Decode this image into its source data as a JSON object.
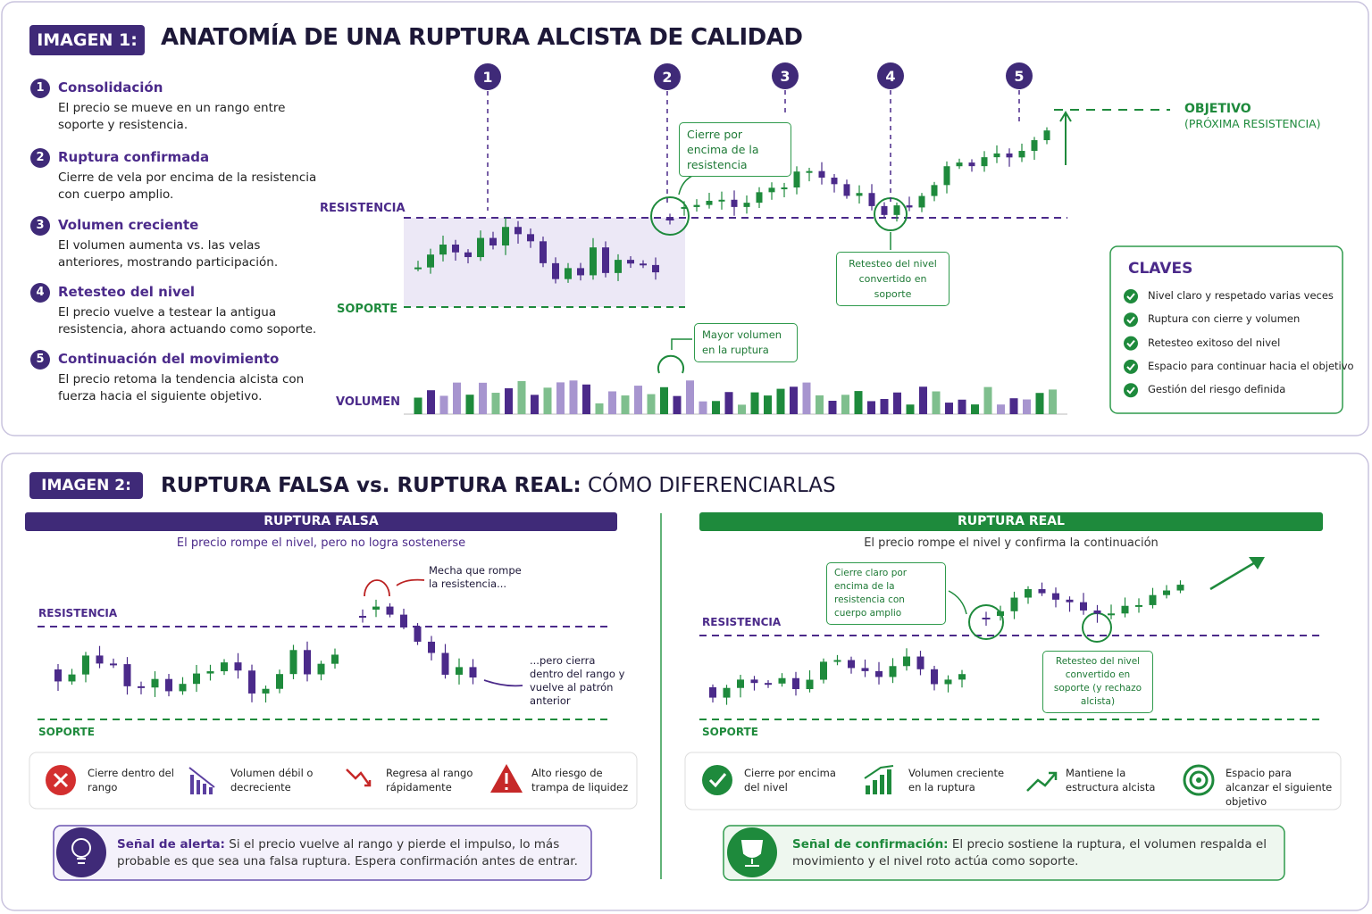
{
  "panel1": {
    "tag": "IMAGEN 1:",
    "title": "ANATOMÍA DE UNA RUPTURA ALCISTA DE CALIDAD",
    "steps": [
      {
        "num": "1",
        "title": "Consolidación",
        "text": "El precio se mueve en un rango entre soporte y resistencia."
      },
      {
        "num": "2",
        "title": "Ruptura confirmada",
        "text": "Cierre de vela por encima de la resistencia con cuerpo amplio."
      },
      {
        "num": "3",
        "title": "Volumen creciente",
        "text": "El volumen aumenta vs. las velas anteriores, mostrando participación."
      },
      {
        "num": "4",
        "title": "Retesteo del nivel",
        "text": "El precio vuelve a testear la antigua resistencia, ahora actuando como soporte."
      },
      {
        "num": "5",
        "title": "Continuación del movimiento",
        "text": "El precio retoma la tendencia alcista con fuerza hacia el siguiente objetivo."
      }
    ],
    "chart": {
      "markers": [
        "1",
        "2",
        "3",
        "4",
        "5"
      ],
      "resistance": "RESISTENCIA",
      "support": "SOPORTE",
      "volume": "VOLUMEN",
      "callout_close": "Cierre por encima de la resistencia",
      "callout_retest": "Retesteo del nivel convertido en soporte",
      "callout_volume": "Mayor volumen en la ruptura",
      "target": "OBJETIVO",
      "target_sub": "(PRÓXIMA RESISTENCIA)"
    },
    "keys": {
      "title": "CLAVES",
      "items": [
        "Nivel claro y respetado varias veces",
        "Ruptura con cierre y volumen",
        "Retesteo exitoso del nivel",
        "Espacio para continuar hacia el objetivo",
        "Gestión del riesgo definida"
      ]
    }
  },
  "panel2": {
    "tag": "IMAGEN 2:",
    "title_bold": "RUPTURA FALSA vs. RUPTURA REAL:",
    "title_rest": "CÓMO DIFERENCIARLAS",
    "false": {
      "header": "RUPTURA FALSA",
      "subtitle": "El precio rompe el nivel, pero no logra sostenerse",
      "resistance": "RESISTENCIA",
      "support": "SOPORTE",
      "callout_wick": "Mecha que rompe la resistencia...",
      "callout_close": "...pero cierra dentro del rango y vuelve al patrón anterior",
      "signs": [
        "Cierre dentro del rango",
        "Volumen débil o decreciente",
        "Regresa al rango rápidamente",
        "Alto riesgo de trampa de liquidez"
      ],
      "alert_label": "Señal de alerta:",
      "alert_text": "Si el precio vuelve al rango y pierde el impulso, lo más probable es que sea una falsa ruptura. Espera confirmación antes de entrar."
    },
    "real": {
      "header": "RUPTURA REAL",
      "subtitle": "El precio rompe el nivel y confirma la continuación",
      "resistance": "RESISTENCIA",
      "support": "SOPORTE",
      "callout_close": "Cierre claro por encima de la resistencia con cuerpo amplio",
      "callout_retest": "Retesteo del nivel convertido en soporte (y rechazo alcista)",
      "signs": [
        "Cierre por encima del nivel",
        "Volumen creciente en la ruptura",
        "Mantiene la estructura alcista",
        "Espacio para alcanzar el siguiente objetivo"
      ],
      "confirm_label": "Señal de confirmación:",
      "confirm_text": "El precio sostiene la ruptura, el volumen respalda el movimiento y el nivel roto actúa como soporte."
    }
  }
}
